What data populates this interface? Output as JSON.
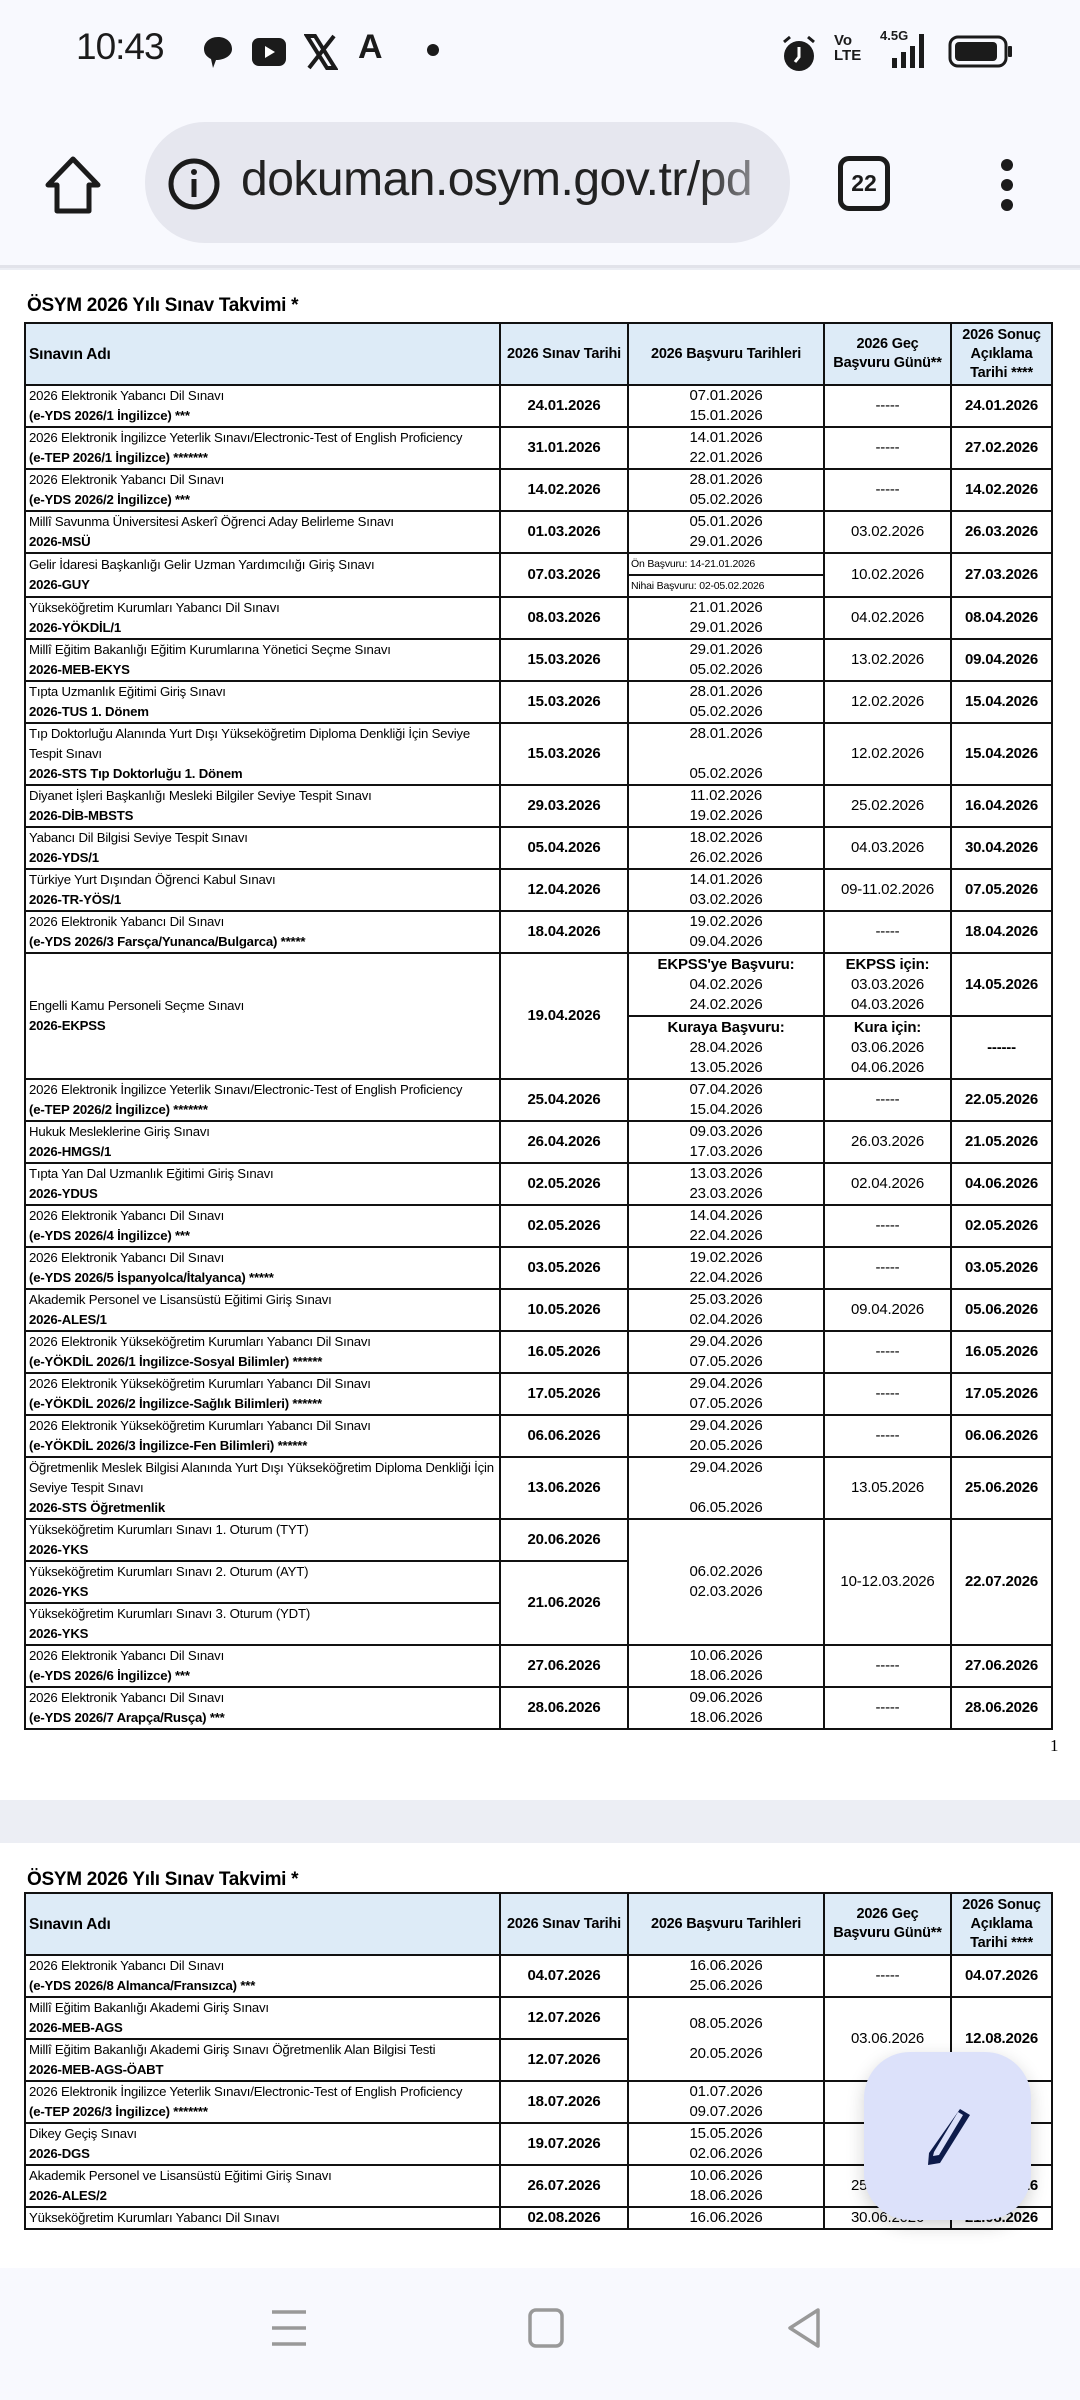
{
  "status_bar": {
    "time": "10:43",
    "network": "4.5G",
    "volte": "Vo LTE"
  },
  "browser": {
    "url": "dokuman.osym.gov.tr/pd",
    "tab_count": "22"
  },
  "table_header": {
    "name": "Sınavın Adı",
    "exam_date": "2026 Sınav Tarihi",
    "application": "2026 Başvuru Tarihleri",
    "late": "2026 Geç Başvuru Günü**",
    "result": "2026 Sonuç Açıklama Tarihi ****"
  },
  "page1": {
    "title": "ÖSYM 2026 Yılı Sınav Takvimi *",
    "page_number": "1",
    "rows_a": [
      {
        "name": "2026 Elektronik Yabancı Dil Sınavı",
        "code": "(e-YDS 2026/1 İngilizce) ***",
        "exam": "24.01.2026",
        "app_start": "07.01.2026",
        "app_end": "15.01.2026",
        "late": "-----",
        "result": "24.01.2026"
      },
      {
        "name": "2026  Elektronik İngilizce Yeterlik Sınavı/Electronic-Test of English Proficiency",
        "code": "(e-TEP 2026/1 İngilizce) *******",
        "exam": "31.01.2026",
        "app_start": "14.01.2026",
        "app_end": "22.01.2026",
        "late": "-----",
        "result": "27.02.2026"
      },
      {
        "name": "2026 Elektronik Yabancı Dil Sınavı",
        "code": "(e-YDS 2026/2 İngilizce) ***",
        "exam": "14.02.2026",
        "app_start": "28.01.2026",
        "app_end": "05.02.2026",
        "late": "-----",
        "result": "14.02.2026"
      },
      {
        "name": "Millî Savunma Üniversitesi Askerî Öğrenci Aday Belirleme Sınavı",
        "code": "2026-MSÜ",
        "exam": "01.03.2026",
        "app_start": "05.01.2026",
        "app_end": "29.01.2026",
        "late": "03.02.2026",
        "result": "26.03.2026"
      }
    ],
    "guy": {
      "name": "Gelir İdaresi Başkanlığı Gelir Uzman Yardımcılığı Giriş Sınavı",
      "code": "2026-GUY",
      "exam": "07.03.2026",
      "pre_application": "Ön Başvuru: 14-21.01.2026",
      "final_application": "Nihai Başvuru: 02-05.02.2026",
      "late": "10.02.2026",
      "result": "27.03.2026"
    },
    "rows_b": [
      {
        "name": "Yükseköğretim Kurumları Yabancı Dil Sınavı",
        "code": "2026-YÖKDİL/1",
        "exam": "08.03.2026",
        "app_start": "21.01.2026",
        "app_end": "29.01.2026",
        "late": "04.02.2026",
        "result": "08.04.2026"
      },
      {
        "name": "Millî Eğitim Bakanlığı Eğitim Kurumlarına Yönetici Seçme Sınavı",
        "code": "2026-MEB-EKYS",
        "exam": "15.03.2026",
        "app_start": "29.01.2026",
        "app_end": "05.02.2026",
        "late": "13.02.2026",
        "result": "09.04.2026"
      },
      {
        "name": "Tıpta Uzmanlık Eğitimi Giriş Sınavı",
        "code": "2026-TUS 1. Dönem",
        "exam": "15.03.2026",
        "app_start": "28.01.2026",
        "app_end": "05.02.2026",
        "late": "12.02.2026",
        "result": "15.04.2026"
      },
      {
        "name": "Tıp Doktorluğu Alanında Yurt Dışı Yükseköğretim Diploma Denkliği İçin Seviye Tespit Sınavı",
        "code": "2026-STS Tıp Doktorluğu 1. Dönem",
        "exam": "15.03.2026",
        "app_start": "28.01.2026",
        "app_end": "05.02.2026",
        "late": "12.02.2026",
        "result": "15.04.2026"
      },
      {
        "name": "Diyanet İşleri Başkanlığı Mesleki Bilgiler Seviye Tespit Sınavı",
        "code": "2026-DİB-MBSTS",
        "exam": "29.03.2026",
        "app_start": "11.02.2026",
        "app_end": "19.02.2026",
        "late": "25.02.2026",
        "result": "16.04.2026"
      },
      {
        "name": "Yabancı Dil Bilgisi Seviye Tespit Sınavı",
        "code": "2026-YDS/1",
        "exam": "05.04.2026",
        "app_start": "18.02.2026",
        "app_end": "26.02.2026",
        "late": "04.03.2026",
        "result": "30.04.2026"
      },
      {
        "name": "Türkiye Yurt Dışından Öğrenci Kabul Sınavı",
        "code": "2026-TR-YÖS/1",
        "exam": "12.04.2026",
        "app_start": "14.01.2026",
        "app_end": "03.02.2026",
        "late": "09-11.02.2026",
        "result": "07.05.2026"
      },
      {
        "name": "2026 Elektronik Yabancı Dil Sınavı",
        "code": "(e-YDS 2026/3 Farsça/Yunanca/Bulgarca) *****",
        "exam": "18.04.2026",
        "app_start": "19.02.2026",
        "app_end": "09.04.2026",
        "late": "-----",
        "result": "18.04.2026"
      }
    ],
    "ekpss": {
      "name": "Engelli Kamu Personeli Seçme Sınavı",
      "code": "2026-EKPSS",
      "exam": "19.04.2026",
      "app1_label": "EKPSS'ye Başvuru:",
      "app1_start": "04.02.2026",
      "app1_end": "24.02.2026",
      "late1_label": "EKPSS için:",
      "late1_start": "03.03.2026",
      "late1_end": "04.03.2026",
      "result1": "14.05.2026",
      "app2_label": "Kuraya Başvuru:",
      "app2_start": "28.04.2026",
      "app2_end": "13.05.2026",
      "late2_label": "Kura için:",
      "late2_start": "03.06.2026",
      "late2_end": "04.06.2026",
      "result2": "------"
    },
    "rows_c": [
      {
        "name": "2026  Elektronik İngilizce Yeterlik Sınavı/Electronic-Test of English Proficiency",
        "code": "(e-TEP 2026/2 İngilizce) *******",
        "exam": "25.04.2026",
        "app_start": "07.04.2026",
        "app_end": "15.04.2026",
        "late": "-----",
        "result": "22.05.2026"
      },
      {
        "name": "Hukuk Mesleklerine Giriş Sınavı",
        "code": "2026-HMGS/1",
        "exam": "26.04.2026",
        "app_start": "09.03.2026",
        "app_end": "17.03.2026",
        "late": "26.03.2026",
        "result": "21.05.2026"
      },
      {
        "name": "Tıpta Yan Dal Uzmanlık Eğitimi Giriş Sınavı",
        "code": "2026-YDUS",
        "exam": "02.05.2026",
        "app_start": "13.03.2026",
        "app_end": "23.03.2026",
        "late": "02.04.2026",
        "result": "04.06.2026"
      },
      {
        "name": "2026 Elektronik Yabancı Dil Sınavı",
        "code": "(e-YDS 2026/4 İngilizce) ***",
        "exam": "02.05.2026",
        "app_start": "14.04.2026",
        "app_end": "22.04.2026",
        "late": "-----",
        "result": "02.05.2026"
      },
      {
        "name": "2026 Elektronik Yabancı Dil Sınavı",
        "code": "(e-YDS 2026/5 İspanyolca/İtalyanca) *****",
        "exam": "03.05.2026",
        "app_start": "19.02.2026",
        "app_end": "22.04.2026",
        "late": "-----",
        "result": "03.05.2026"
      },
      {
        "name": "Akademik Personel ve Lisansüstü Eğitimi Giriş Sınavı",
        "code": "2026-ALES/1",
        "exam": "10.05.2026",
        "app_start": "25.03.2026",
        "app_end": "02.04.2026",
        "late": "09.04.2026",
        "result": "05.06.2026"
      },
      {
        "name": "2026 Elektronik Yükseköğretim Kurumları Yabancı Dil Sınavı",
        "code": "(e-YÖKDİL 2026/1 İngilizce-Sosyal Bilimler) ******",
        "exam": "16.05.2026",
        "app_start": "29.04.2026",
        "app_end": "07.05.2026",
        "late": "-----",
        "result": "16.05.2026"
      },
      {
        "name": "2026 Elektronik Yükseköğretim Kurumları Yabancı Dil Sınavı",
        "code": "(e-YÖKDİL 2026/2 İngilizce-Sağlık Bilimleri) ******",
        "exam": "17.05.2026",
        "app_start": "29.04.2026",
        "app_end": "07.05.2026",
        "late": "-----",
        "result": "17.05.2026"
      },
      {
        "name": "2026 Elektronik Yükseköğretim Kurumları Yabancı Dil Sınavı",
        "code": "(e-YÖKDİL 2026/3 İngilizce-Fen Bilimleri) ******",
        "exam": "06.06.2026",
        "app_start": "29.04.2026",
        "app_end": "20.05.2026",
        "late": "-----",
        "result": "06.06.2026"
      },
      {
        "name": "Öğretmenlik Meslek Bilgisi Alanında Yurt Dışı Yükseköğretim Diploma Denkliği İçin Seviye Tespit Sınavı",
        "code": "2026-STS Öğretmenlik",
        "exam": "13.06.2026",
        "app_start": "29.04.2026",
        "app_end": "06.05.2026",
        "late": "13.05.2026",
        "result": "25.06.2026"
      }
    ],
    "yks": {
      "sessions": [
        {
          "name": "Yükseköğretim Kurumları Sınavı 1. Oturum (TYT)",
          "code": "2026-YKS"
        },
        {
          "name": "Yükseköğretim Kurumları Sınavı 2. Oturum (AYT)",
          "code": "2026-YKS"
        },
        {
          "name": "Yükseköğretim Kurumları Sınavı 3. Oturum (YDT)",
          "code": "2026-YKS"
        }
      ],
      "exam_1": "20.06.2026",
      "exam_2_3": "21.06.2026",
      "app_start": "06.02.2026",
      "app_end": "02.03.2026",
      "late": "10-12.03.2026",
      "result": "22.07.2026"
    },
    "rows_d": [
      {
        "name": "2026 Elektronik Yabancı Dil Sınavı",
        "code": "(e-YDS 2026/6 İngilizce) ***",
        "exam": "27.06.2026",
        "app_start": "10.06.2026",
        "app_end": "18.06.2026",
        "late": "-----",
        "result": "27.06.2026"
      },
      {
        "name": "2026 Elektronik Yabancı Dil Sınavı",
        "code": "(e-YDS 2026/7 Arapça/Rusça) ***",
        "exam": "28.06.2026",
        "app_start": "09.06.2026",
        "app_end": "18.06.2026",
        "late": "-----",
        "result": "28.06.2026"
      }
    ]
  },
  "page2": {
    "title": "ÖSYM 2026 Yılı Sınav Takvimi *",
    "rows_a": [
      {
        "name": "2026 Elektronik Yabancı Dil Sınavı",
        "code": "(e-YDS 2026/8 Almanca/Fransızca) ***",
        "exam": "04.07.2026",
        "app_start": "16.06.2026",
        "app_end": "25.06.2026",
        "late": "-----",
        "result": "04.07.2026"
      }
    ],
    "meb": {
      "rows": [
        {
          "name": "Millî Eğitim Bakanlığı Akademi Giriş Sınavı",
          "code": "2026-MEB-AGS",
          "exam": "12.07.2026"
        },
        {
          "name": "Millî Eğitim Bakanlığı Akademi Giriş Sınavı Öğretmenlik Alan Bilgisi Testi",
          "code": "2026-MEB-AGS-ÖABT",
          "exam": "12.07.2026"
        }
      ],
      "app_start": "08.05.2026",
      "app_end": "20.05.2026",
      "late": "03.06.2026",
      "result": "12.08.2026"
    },
    "rows_b": [
      {
        "name": "2026  Elektronik İngilizce Yeterlik Sınavı/Electronic-Test of English Proficiency",
        "code": "(e-TEP 2026/3 İngilizce) *******",
        "exam": "18.07.2026",
        "app_start": "01.07.2026",
        "app_end": "09.07.2026",
        "late": "",
        "result": ""
      },
      {
        "name": "Dikey Geçiş Sınavı",
        "code": "2026-DGS",
        "exam": "19.07.2026",
        "app_start": "15.05.2026",
        "app_end": "02.06.2026",
        "late": "11.0",
        "result": ""
      },
      {
        "name": "Akademik Personel ve Lisansüstü Eğitimi Giriş Sınavı",
        "code": "2026-ALES/2",
        "exam": "26.07.2026",
        "app_start": "10.06.2026",
        "app_end": "18.06.2026",
        "late": "25.06.2026",
        "result": "14.08.2026"
      },
      {
        "name": "Yükseköğretim Kurumları Yabancı Dil Sınavı",
        "code": "",
        "exam": "02.08.2026",
        "app_start": "16.06.2026",
        "app_end": "",
        "late": "30.06.2026",
        "result": "21.08.2026"
      }
    ]
  },
  "colors": {
    "header_bg": "#ddebf7",
    "fab_bg": "#dce1fa",
    "fab_icon": "#0d1b4a",
    "browser_bg": "#f8f9fe",
    "url_pill": "#e6e7ef"
  },
  "icons": [
    "message-icon",
    "youtube-icon",
    "x-icon",
    "a-icon",
    "dot-icon",
    "alarm-icon",
    "signal-icon",
    "battery-icon",
    "home-icon",
    "info-icon",
    "tabs-icon",
    "menu-icon",
    "edit-pencil-icon",
    "recents-icon",
    "home-nav-icon",
    "back-icon"
  ]
}
